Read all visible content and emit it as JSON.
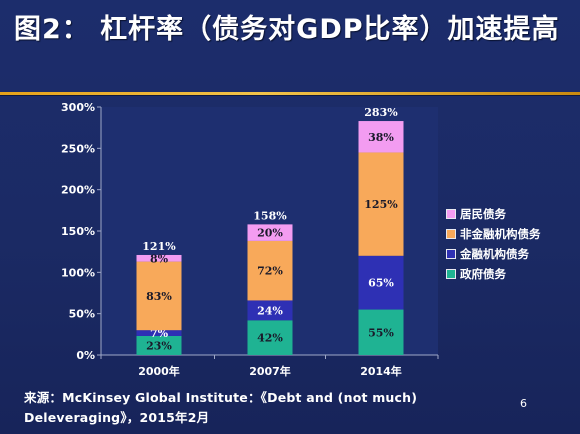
{
  "slide": {
    "title": "图2： 杠杆率（债务对GDP比率）加速提高",
    "source": "来源：McKinsey Global Institute：《Debt and (not much) Deleveraging》，2015年2月",
    "page_number": "6"
  },
  "colors": {
    "background": "#1c2c68",
    "accent_rule": "#e6a21a",
    "household": "#f39cf1",
    "non_financial": "#f8a95a",
    "financial": "#2e30b4",
    "government": "#1fb393"
  },
  "chart_data": {
    "type": "bar",
    "stacked": true,
    "categories": [
      "2000年",
      "2007年",
      "2014年"
    ],
    "series": [
      {
        "name": "政府债务",
        "values": [
          23,
          42,
          55
        ],
        "labels": [
          "23%",
          "42%",
          "55%"
        ],
        "color": "#1fb393"
      },
      {
        "name": "金融机构债务",
        "values": [
          7,
          24,
          65
        ],
        "labels": [
          "7%",
          "24%",
          "65%"
        ],
        "color": "#2e30b4"
      },
      {
        "name": "非金融机构债务",
        "values": [
          83,
          72,
          125
        ],
        "labels": [
          "83%",
          "72%",
          "125%"
        ],
        "color": "#f8a95a"
      },
      {
        "name": "居民债务",
        "values": [
          8,
          20,
          38
        ],
        "labels": [
          "8%",
          "20%",
          "38%"
        ],
        "color": "#f39cf1"
      }
    ],
    "totals": [
      121,
      158,
      283
    ],
    "total_labels": [
      "121%",
      "158%",
      "283%"
    ],
    "yticks": [
      "0%",
      "50%",
      "100%",
      "150%",
      "200%",
      "250%",
      "300%"
    ],
    "ylim": [
      0,
      300
    ],
    "legend_order": [
      "居民债务",
      "非金融机构债务",
      "金融机构债务",
      "政府债务"
    ],
    "legend_position": "right",
    "grid": false,
    "xlabel": "",
    "ylabel": ""
  }
}
